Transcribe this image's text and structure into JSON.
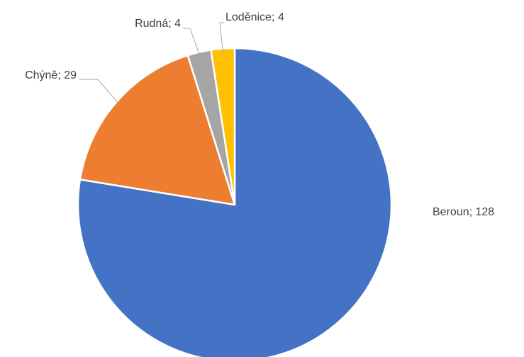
{
  "chart_data": {
    "type": "pie",
    "categories": [
      "Beroun",
      "Chýně",
      "Rudná",
      "Loděnice"
    ],
    "values": [
      128,
      29,
      4,
      4
    ],
    "value_labels": [
      "Beroun; 128",
      "Chýně; 29",
      "Rudná; 4",
      "Loděnice; 4"
    ],
    "colors": [
      "#4472c4",
      "#ed7d31",
      "#a5a5a5",
      "#ffc000"
    ]
  }
}
